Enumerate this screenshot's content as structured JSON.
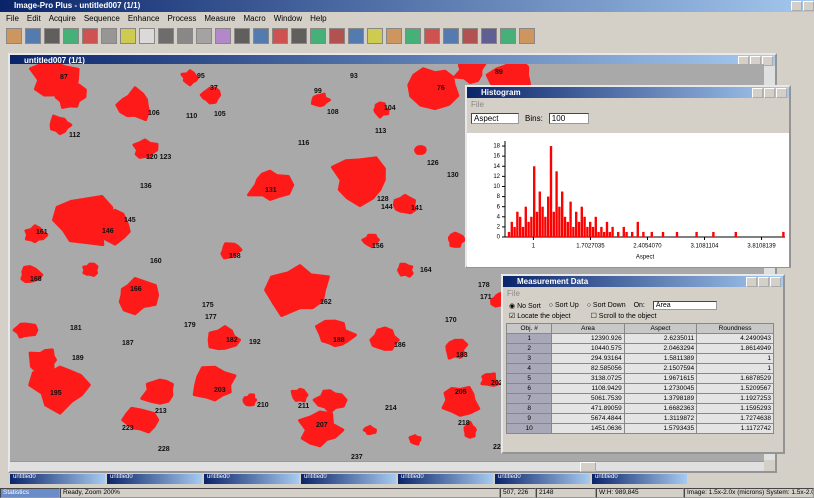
{
  "app": {
    "title": "Image-Pro Plus - untitled007 (1/1)",
    "menu": [
      "File",
      "Edit",
      "Acquire",
      "Sequence",
      "Enhance",
      "Process",
      "Measure",
      "Macro",
      "Window",
      "Help"
    ]
  },
  "image_window": {
    "title": "untitled007 (1/1)",
    "object_labels": [
      "87",
      "95",
      "37",
      "99",
      "93",
      "89",
      "76",
      "106",
      "110",
      "105",
      "108",
      "104",
      "112",
      "113",
      "116",
      "120 123",
      "126",
      "130",
      "136",
      "131",
      "128",
      "144",
      "141",
      "145",
      "161",
      "146",
      "156",
      "158",
      "160",
      "164",
      "168",
      "166",
      "162",
      "175",
      "177",
      "179",
      "178",
      "171",
      "170",
      "181",
      "187",
      "182",
      "192",
      "188",
      "186",
      "183",
      "189",
      "195",
      "213",
      "203",
      "210",
      "211",
      "214",
      "202",
      "205",
      "218",
      "223",
      "207",
      "228",
      "237",
      "229"
    ]
  },
  "histogram_window": {
    "title": "Histogram",
    "menu": [
      "File"
    ],
    "measure": "Aspect",
    "bins_label": "Bins:",
    "bins": "100",
    "chart_data": {
      "type": "bar",
      "x_label": "Aspect",
      "color": "#ff0000",
      "counts": [
        0,
        1,
        3,
        2,
        5,
        4,
        2,
        6,
        3,
        4,
        14,
        5,
        9,
        6,
        4,
        8,
        18,
        5,
        13,
        6,
        9,
        4,
        3,
        7,
        2,
        5,
        3,
        6,
        4,
        2,
        3,
        2,
        4,
        1,
        2,
        1,
        3,
        1,
        2,
        0,
        1,
        0,
        2,
        1,
        0,
        1,
        0,
        3,
        0,
        1,
        0,
        0,
        1,
        0,
        0,
        0,
        1,
        0,
        0,
        0,
        0,
        1,
        0,
        0,
        0,
        0,
        0,
        0,
        1,
        0,
        0,
        0,
        0,
        0,
        1,
        0,
        0,
        0,
        0,
        0,
        0,
        0,
        1,
        0,
        0,
        0,
        0,
        0,
        0,
        0,
        0,
        0,
        0,
        0,
        0,
        0,
        0,
        0,
        0,
        1
      ],
      "xlim": [
        0.65,
        4.1
      ],
      "xticks": [
        {
          "value": 1,
          "label": "1"
        },
        1.7027035,
        {
          "value": 2.405407,
          "label": "2.4054070"
        },
        3.1081104,
        3.8108139
      ],
      "ylim": [
        0,
        19
      ],
      "yticks": [
        0,
        2,
        4,
        6,
        8,
        10,
        12,
        14,
        16,
        18
      ]
    }
  },
  "measurement_window": {
    "title": "Measurement Data",
    "menu": [
      "File"
    ],
    "sort_options": [
      "No Sort",
      "Sort Up",
      "Sort Down"
    ],
    "on_label": "On:",
    "on_value": "Area",
    "locate": "Locate the object",
    "scroll": "Scroll to the object",
    "table": {
      "header": [
        "Obj. #",
        "Area",
        "Aspect",
        "Roundness"
      ],
      "rows": [
        [
          "1",
          "12390.926",
          "2.6235011",
          "4.2490943"
        ],
        [
          "2",
          "10440.575",
          "2.0463294",
          "1.8614949"
        ],
        [
          "3",
          "294.93164",
          "1.5811389",
          "1"
        ],
        [
          "4",
          "82.585056",
          "2.1507594",
          "1"
        ],
        [
          "5",
          "3138.0725",
          "1.9671615",
          "1.6878529"
        ],
        [
          "6",
          "1108.9429",
          "1.2730045",
          "1.5209567"
        ],
        [
          "7",
          "5061.7539",
          "1.3798189",
          "1.1927253"
        ],
        [
          "8",
          "471.89059",
          "1.6682363",
          "1.1595293"
        ],
        [
          "9",
          "5674.4844",
          "1.3119872",
          "1.7274638"
        ],
        [
          "10",
          "1451.0636",
          "1.5793435",
          "1.1172742"
        ]
      ]
    }
  },
  "taskbar": {
    "items": [
      "untitled0",
      "untitled0",
      "untitled0",
      "untitled0",
      "untitled0",
      "untitled0",
      "untitled0"
    ],
    "statistics": "Statistics"
  },
  "status": {
    "message": "Ready, Zoom 200%",
    "coords": "507, 226",
    "value": "2148",
    "size": "W:H: 989,845",
    "calibration": "Image: 1.5x-2.0x (microns)  System: 1.5x-2.0x"
  }
}
